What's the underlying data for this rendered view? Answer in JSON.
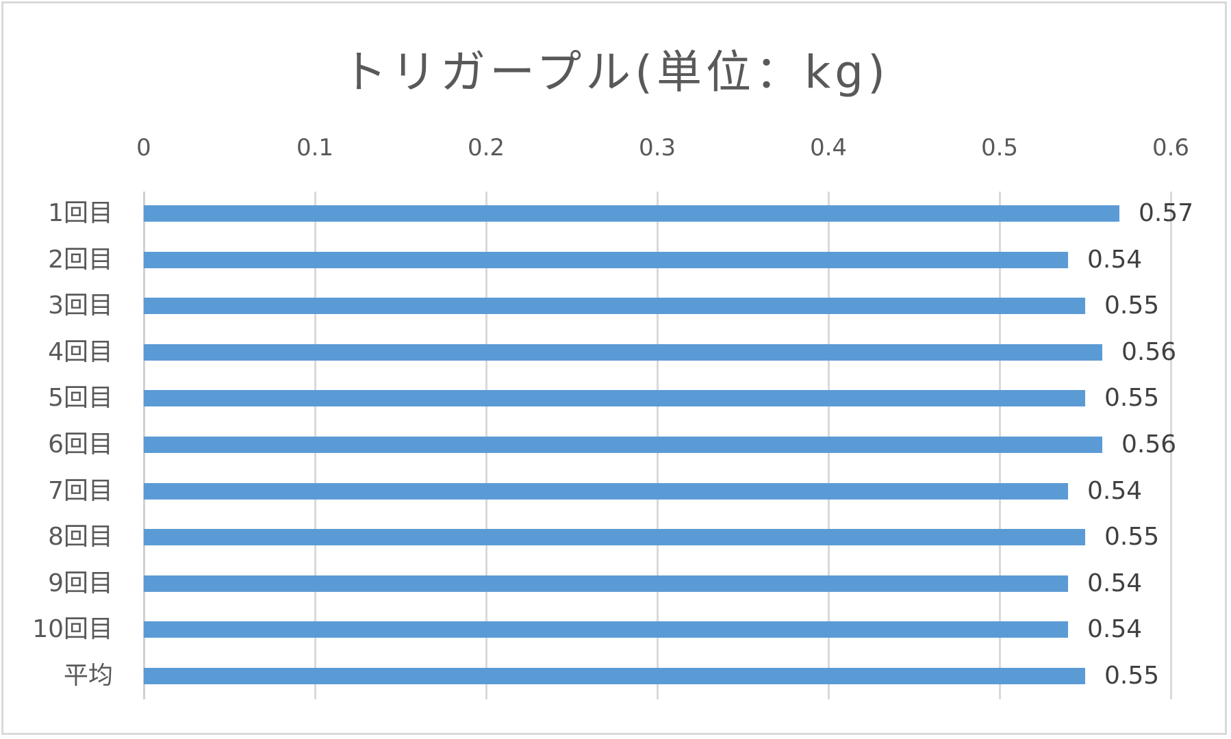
{
  "chart_data": {
    "type": "bar",
    "orientation": "horizontal",
    "title": "トリガープル(単位：kg)",
    "categories": [
      "1回目",
      "2回目",
      "3回目",
      "4回目",
      "5回目",
      "6回目",
      "7回目",
      "8回目",
      "9回目",
      "10回目",
      "平均"
    ],
    "values": [
      0.57,
      0.54,
      0.55,
      0.56,
      0.55,
      0.56,
      0.54,
      0.55,
      0.54,
      0.54,
      0.55
    ],
    "value_labels": [
      "0.57",
      "0.54",
      "0.55",
      "0.56",
      "0.55",
      "0.56",
      "0.54",
      "0.55",
      "0.54",
      "0.54",
      "0.55"
    ],
    "xlabel": "",
    "ylabel": "",
    "xlim": [
      0,
      0.6
    ],
    "x_ticks": [
      "0",
      "0.1",
      "0.2",
      "0.3",
      "0.4",
      "0.5",
      "0.6"
    ],
    "x_axis_position": "top",
    "grid": true,
    "legend": null,
    "bar_color": "#5b9bd5",
    "data_labels": true
  }
}
